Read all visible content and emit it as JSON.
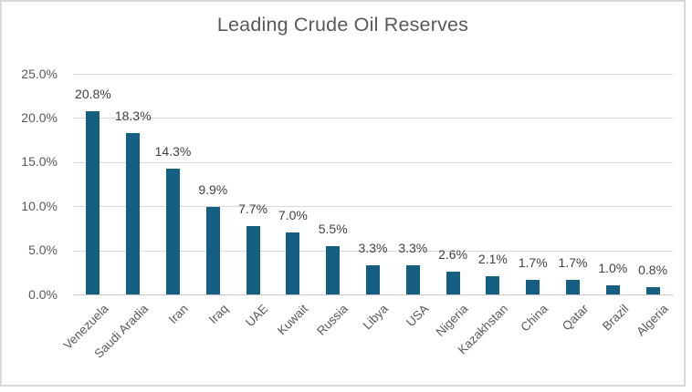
{
  "chart_data": {
    "type": "bar",
    "title": "Leading Crude Oil Reserves",
    "categories": [
      "Venezuela",
      "Saudi Aradia",
      "Iran",
      "Iraq",
      "UAE",
      "Kuwait",
      "Russia",
      "Libya",
      "USA",
      "Nigeria",
      "Kazakhstan",
      "China",
      "Qatar",
      "Brazil",
      "Algeria"
    ],
    "values": [
      20.8,
      18.3,
      14.3,
      9.9,
      7.7,
      7.0,
      5.5,
      3.3,
      3.3,
      2.6,
      2.1,
      1.7,
      1.7,
      1.0,
      0.8
    ],
    "data_labels": [
      "20.8%",
      "18.3%",
      "14.3%",
      "9.9%",
      "7.7%",
      "7.0%",
      "5.5%",
      "3.3%",
      "3.3%",
      "2.6%",
      "2.1%",
      "1.7%",
      "1.7%",
      "1.0%",
      "0.8%"
    ],
    "y_ticks": [
      "25.0%",
      "20.0%",
      "15.0%",
      "10.0%",
      "5.0%",
      "0.0%"
    ],
    "ylim": [
      0,
      25
    ],
    "xlabel": "",
    "ylabel": "",
    "grid": true,
    "legend": "none",
    "bar_color": "#156082",
    "gridline_color": "#D9D9D9",
    "data_label_color": "#404040",
    "axis_text_color": "#595959",
    "title_color": "#595959"
  }
}
